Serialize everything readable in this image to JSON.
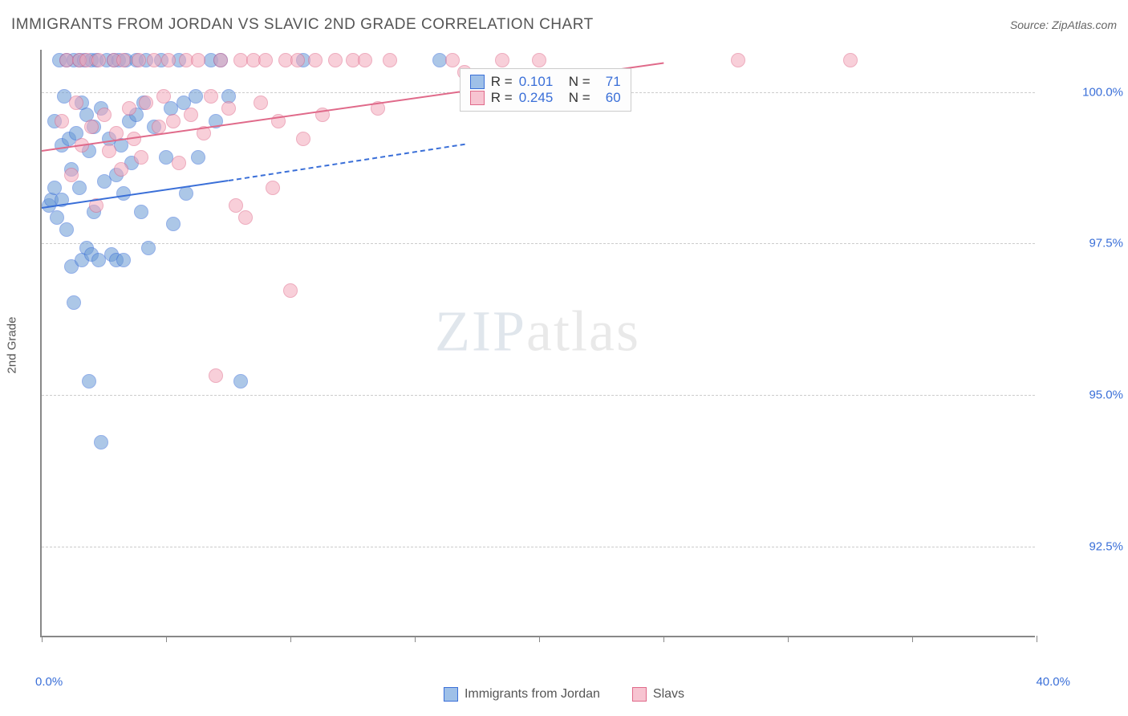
{
  "header": {
    "title": "IMMIGRANTS FROM JORDAN VS SLAVIC 2ND GRADE CORRELATION CHART",
    "source": "Source: ZipAtlas.com"
  },
  "watermark": {
    "part1": "ZIP",
    "part2": "atlas"
  },
  "chart": {
    "type": "scatter",
    "xlim": [
      0,
      40
    ],
    "ylim": [
      91,
      100.7
    ],
    "xlabel_min": "0.0%",
    "xlabel_max": "40.0%",
    "ylabel": "2nd Grade",
    "yticks": [
      {
        "v": 92.5,
        "label": "92.5%"
      },
      {
        "v": 95.0,
        "label": "95.0%"
      },
      {
        "v": 97.5,
        "label": "97.5%"
      },
      {
        "v": 100.0,
        "label": "100.0%"
      }
    ],
    "xticks": [
      0,
      5,
      10,
      15,
      20,
      25,
      30,
      35,
      40
    ],
    "marker_radius": 9,
    "marker_opacity": 0.55,
    "background_color": "#ffffff",
    "grid_color": "#cccccc",
    "series": [
      {
        "name": "Immigrants from Jordan",
        "color": "#6a9ad4",
        "stroke": "#3a6fd8",
        "R": "0.101",
        "N": "71",
        "trend": {
          "x1": 0,
          "y1": 98.1,
          "x2": 7.5,
          "y2": 98.55,
          "solid": true
        },
        "trend_dash": {
          "x1": 7.5,
          "y1": 98.55,
          "x2": 17,
          "y2": 99.15
        },
        "points": [
          [
            0.3,
            98.1
          ],
          [
            0.4,
            98.2
          ],
          [
            0.5,
            99.5
          ],
          [
            0.5,
            98.4
          ],
          [
            0.6,
            97.9
          ],
          [
            0.7,
            100.5
          ],
          [
            0.8,
            99.1
          ],
          [
            0.8,
            98.2
          ],
          [
            0.9,
            99.9
          ],
          [
            1.0,
            97.7
          ],
          [
            1.0,
            100.5
          ],
          [
            1.1,
            99.2
          ],
          [
            1.2,
            97.1
          ],
          [
            1.2,
            98.7
          ],
          [
            1.3,
            100.5
          ],
          [
            1.3,
            96.5
          ],
          [
            1.4,
            99.3
          ],
          [
            1.5,
            100.5
          ],
          [
            1.5,
            98.4
          ],
          [
            1.6,
            97.2
          ],
          [
            1.6,
            99.8
          ],
          [
            1.7,
            100.5
          ],
          [
            1.8,
            97.4
          ],
          [
            1.8,
            99.6
          ],
          [
            1.9,
            99.0
          ],
          [
            1.9,
            95.2
          ],
          [
            2.0,
            100.5
          ],
          [
            2.0,
            97.3
          ],
          [
            2.1,
            99.4
          ],
          [
            2.1,
            98.0
          ],
          [
            2.2,
            100.5
          ],
          [
            2.3,
            97.2
          ],
          [
            2.4,
            99.7
          ],
          [
            2.4,
            94.2
          ],
          [
            2.5,
            98.5
          ],
          [
            2.6,
            100.5
          ],
          [
            2.7,
            99.2
          ],
          [
            2.8,
            97.3
          ],
          [
            2.9,
            100.5
          ],
          [
            3.0,
            98.6
          ],
          [
            3.0,
            97.2
          ],
          [
            3.1,
            100.5
          ],
          [
            3.2,
            99.1
          ],
          [
            3.3,
            98.3
          ],
          [
            3.3,
            97.2
          ],
          [
            3.4,
            100.5
          ],
          [
            3.5,
            99.5
          ],
          [
            3.6,
            98.8
          ],
          [
            3.8,
            99.6
          ],
          [
            3.8,
            100.5
          ],
          [
            4.0,
            98.0
          ],
          [
            4.1,
            99.8
          ],
          [
            4.2,
            100.5
          ],
          [
            4.3,
            97.4
          ],
          [
            4.5,
            99.4
          ],
          [
            4.8,
            100.5
          ],
          [
            5.0,
            98.9
          ],
          [
            5.2,
            99.7
          ],
          [
            5.3,
            97.8
          ],
          [
            5.5,
            100.5
          ],
          [
            5.7,
            99.8
          ],
          [
            5.8,
            98.3
          ],
          [
            6.2,
            99.9
          ],
          [
            6.3,
            98.9
          ],
          [
            6.8,
            100.5
          ],
          [
            7.0,
            99.5
          ],
          [
            7.2,
            100.5
          ],
          [
            7.5,
            99.9
          ],
          [
            8.0,
            95.2
          ],
          [
            10.5,
            100.5
          ],
          [
            16.0,
            100.5
          ]
        ]
      },
      {
        "name": "Slavs",
        "color": "#f3a8bb",
        "stroke": "#e06a8a",
        "R": "0.245",
        "N": "60",
        "trend": {
          "x1": 0,
          "y1": 99.05,
          "x2": 25,
          "y2": 100.5,
          "solid": true
        },
        "points": [
          [
            0.8,
            99.5
          ],
          [
            1.0,
            100.5
          ],
          [
            1.2,
            98.6
          ],
          [
            1.4,
            99.8
          ],
          [
            1.5,
            100.5
          ],
          [
            1.6,
            99.1
          ],
          [
            1.8,
            100.5
          ],
          [
            2.0,
            99.4
          ],
          [
            2.2,
            98.1
          ],
          [
            2.3,
            100.5
          ],
          [
            2.5,
            99.6
          ],
          [
            2.7,
            99.0
          ],
          [
            2.9,
            100.5
          ],
          [
            3.0,
            99.3
          ],
          [
            3.2,
            98.7
          ],
          [
            3.3,
            100.5
          ],
          [
            3.5,
            99.7
          ],
          [
            3.7,
            99.2
          ],
          [
            3.9,
            100.5
          ],
          [
            4.0,
            98.9
          ],
          [
            4.2,
            99.8
          ],
          [
            4.5,
            100.5
          ],
          [
            4.7,
            99.4
          ],
          [
            4.9,
            99.9
          ],
          [
            5.1,
            100.5
          ],
          [
            5.3,
            99.5
          ],
          [
            5.5,
            98.8
          ],
          [
            5.8,
            100.5
          ],
          [
            6.0,
            99.6
          ],
          [
            6.3,
            100.5
          ],
          [
            6.5,
            99.3
          ],
          [
            6.8,
            99.9
          ],
          [
            7.0,
            95.3
          ],
          [
            7.2,
            100.5
          ],
          [
            7.5,
            99.7
          ],
          [
            7.8,
            98.1
          ],
          [
            8.0,
            100.5
          ],
          [
            8.2,
            97.9
          ],
          [
            8.5,
            100.5
          ],
          [
            8.8,
            99.8
          ],
          [
            9.0,
            100.5
          ],
          [
            9.3,
            98.4
          ],
          [
            9.5,
            99.5
          ],
          [
            9.8,
            100.5
          ],
          [
            10.0,
            96.7
          ],
          [
            10.3,
            100.5
          ],
          [
            10.5,
            99.2
          ],
          [
            11.0,
            100.5
          ],
          [
            11.3,
            99.6
          ],
          [
            11.8,
            100.5
          ],
          [
            12.5,
            100.5
          ],
          [
            13.0,
            100.5
          ],
          [
            13.5,
            99.7
          ],
          [
            14.0,
            100.5
          ],
          [
            16.5,
            100.5
          ],
          [
            17.0,
            100.3
          ],
          [
            18.5,
            100.5
          ],
          [
            20.0,
            100.5
          ],
          [
            28.0,
            100.5
          ],
          [
            32.5,
            100.5
          ]
        ]
      }
    ],
    "stats_box": {
      "rows": [
        {
          "swatch_fill": "#9ec0e8",
          "swatch_stroke": "#3a6fd8",
          "R_label": "R =",
          "R": "0.101",
          "N_label": "N =",
          "N": "71"
        },
        {
          "swatch_fill": "#f7c4d1",
          "swatch_stroke": "#e06a8a",
          "R_label": "R =",
          "R": "0.245",
          "N_label": "N =",
          "N": "60"
        }
      ]
    }
  },
  "bottom_legend": [
    {
      "fill": "#9ec0e8",
      "stroke": "#3a6fd8",
      "label": "Immigrants from Jordan"
    },
    {
      "fill": "#f7c4d1",
      "stroke": "#e06a8a",
      "label": "Slavs"
    }
  ]
}
